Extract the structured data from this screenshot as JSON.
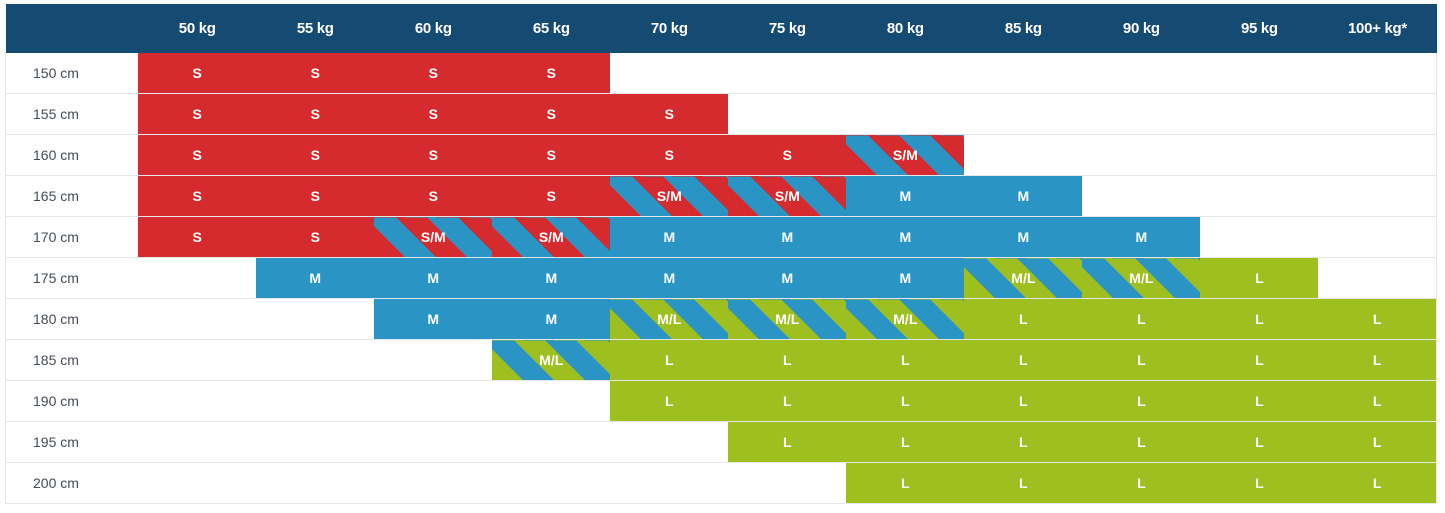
{
  "colors": {
    "header_bg": "#154a73",
    "S": "#d52b2e",
    "M": "#2a95c4",
    "L": "#9dbf1f"
  },
  "weights": [
    "50 kg",
    "55 kg",
    "60 kg",
    "65 kg",
    "70 kg",
    "75 kg",
    "80 kg",
    "85 kg",
    "90 kg",
    "95 kg",
    "100+ kg*"
  ],
  "rows": [
    {
      "height": "150 cm",
      "sizes": [
        "S",
        "S",
        "S",
        "S",
        "",
        "",
        "",
        "",
        "",
        "",
        ""
      ]
    },
    {
      "height": "155 cm",
      "sizes": [
        "S",
        "S",
        "S",
        "S",
        "S",
        "",
        "",
        "",
        "",
        "",
        ""
      ]
    },
    {
      "height": "160 cm",
      "sizes": [
        "S",
        "S",
        "S",
        "S",
        "S",
        "S",
        "S/M",
        "",
        "",
        "",
        ""
      ]
    },
    {
      "height": "165 cm",
      "sizes": [
        "S",
        "S",
        "S",
        "S",
        "S/M",
        "S/M",
        "M",
        "M",
        "",
        "",
        ""
      ]
    },
    {
      "height": "170 cm",
      "sizes": [
        "S",
        "S",
        "S/M",
        "S/M",
        "M",
        "M",
        "M",
        "M",
        "M",
        "",
        ""
      ]
    },
    {
      "height": "175 cm",
      "sizes": [
        "",
        "M",
        "M",
        "M",
        "M",
        "M",
        "M",
        "M/L",
        "M/L",
        "L",
        ""
      ]
    },
    {
      "height": "180 cm",
      "sizes": [
        "",
        "",
        "M",
        "M",
        "M/L",
        "M/L",
        "M/L",
        "L",
        "L",
        "L",
        "L"
      ]
    },
    {
      "height": "185 cm",
      "sizes": [
        "",
        "",
        "",
        "M/L",
        "L",
        "L",
        "L",
        "L",
        "L",
        "L",
        "L"
      ]
    },
    {
      "height": "190 cm",
      "sizes": [
        "",
        "",
        "",
        "",
        "L",
        "L",
        "L",
        "L",
        "L",
        "L",
        "L"
      ]
    },
    {
      "height": "195 cm",
      "sizes": [
        "",
        "",
        "",
        "",
        "",
        "L",
        "L",
        "L",
        "L",
        "L",
        "L"
      ]
    },
    {
      "height": "200 cm",
      "sizes": [
        "",
        "",
        "",
        "",
        "",
        "",
        "L",
        "L",
        "L",
        "L",
        "L"
      ]
    }
  ]
}
